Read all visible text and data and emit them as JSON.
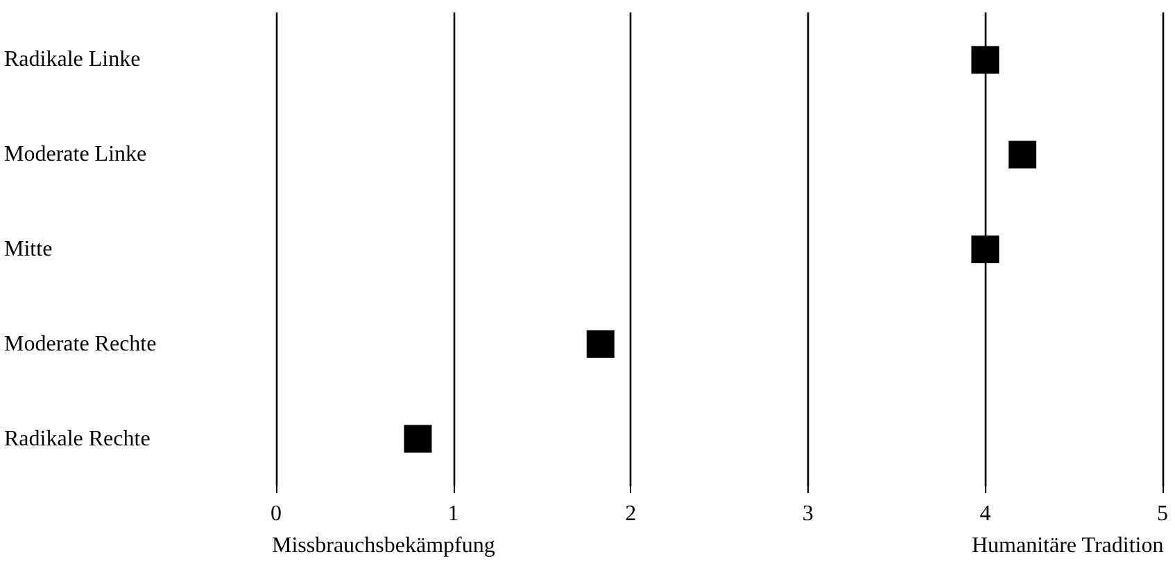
{
  "chart_data": {
    "type": "scatter",
    "orientation": "horizontal",
    "categories": [
      "Radikale Linke",
      "Moderate Linke",
      "Mitte",
      "Moderate Rechte",
      "Radikale Rechte"
    ],
    "values": [
      4.0,
      4.21,
      4.0,
      1.83,
      0.8
    ],
    "color": "#000000",
    "marker": "square",
    "xlim": [
      0,
      5
    ],
    "xticks": [
      0,
      1,
      2,
      3,
      4,
      5
    ],
    "grid": "x",
    "annotations": [
      "Missbrauchsbekämpfung",
      "Humanitäre Tradition"
    ]
  }
}
